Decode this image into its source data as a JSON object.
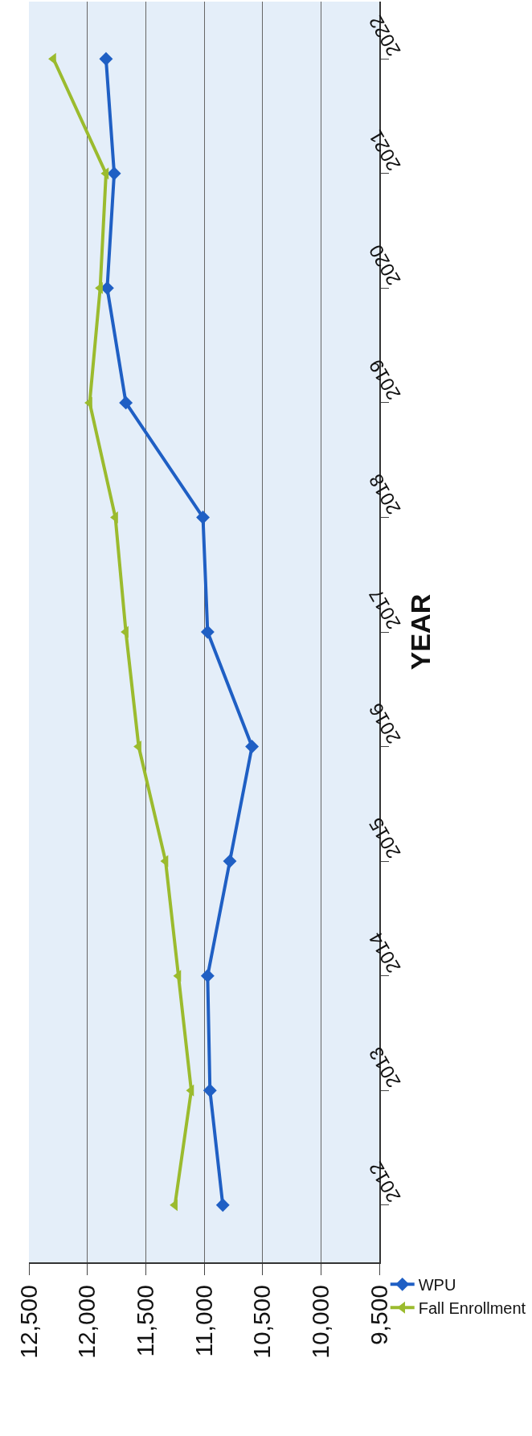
{
  "chart_data": {
    "type": "line",
    "orientation": "horizontal",
    "ylabel": "YEAR",
    "categories": [
      "2022",
      "2021",
      "2020",
      "2019",
      "2018",
      "2017",
      "2016",
      "2015",
      "2014",
      "2013",
      "2012"
    ],
    "series": [
      {
        "name": "WPU",
        "color": "#1f5fc4",
        "marker": "diamond",
        "values": [
          11840,
          11770,
          11830,
          11670,
          11010,
          10970,
          10590,
          10780,
          10970,
          10950,
          10840
        ]
      },
      {
        "name": "Fall Enrollment",
        "color": "#9bbb2e",
        "marker": "triangle",
        "values": [
          12290,
          11840,
          11890,
          11980,
          11760,
          11670,
          11560,
          11330,
          11220,
          11110,
          11250
        ]
      }
    ],
    "xlim": [
      12500,
      9500
    ],
    "xticks": [
      {
        "value": 12500,
        "label": "12,500"
      },
      {
        "value": 12000,
        "label": "12,000"
      },
      {
        "value": 11500,
        "label": "11,500"
      },
      {
        "value": 11000,
        "label": "11,000"
      },
      {
        "value": 10500,
        "label": "10,500"
      },
      {
        "value": 10000,
        "label": "10,000"
      },
      {
        "value": 9500,
        "label": "9,500"
      }
    ],
    "grid": "x",
    "legend": "bottom right",
    "line_style": "solid"
  }
}
